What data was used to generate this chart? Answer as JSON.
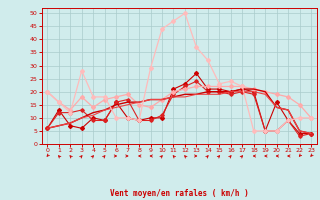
{
  "x": [
    0,
    1,
    2,
    3,
    4,
    5,
    6,
    7,
    8,
    9,
    10,
    11,
    12,
    13,
    14,
    15,
    16,
    17,
    18,
    19,
    20,
    21,
    22,
    23
  ],
  "lines": [
    {
      "y": [
        6,
        13,
        7,
        6,
        10,
        9,
        16,
        10,
        9,
        10,
        10,
        21,
        23,
        27,
        21,
        21,
        20,
        21,
        20,
        5,
        16,
        9,
        4,
        4
      ],
      "color": "#cc0000",
      "lw": 0.8,
      "marker": "D",
      "ms": 2.0
    },
    {
      "y": [
        6,
        12,
        12,
        13,
        9,
        9,
        16,
        17,
        9,
        9,
        11,
        19,
        22,
        24,
        20,
        20,
        19,
        20,
        19,
        5,
        5,
        9,
        3,
        4
      ],
      "color": "#dd2222",
      "lw": 0.8,
      "marker": "D",
      "ms": 1.8
    },
    {
      "y": [
        20,
        16,
        13,
        18,
        14,
        17,
        18,
        19,
        15,
        14,
        17,
        20,
        21,
        22,
        22,
        22,
        22,
        22,
        21,
        20,
        19,
        18,
        15,
        10
      ],
      "color": "#ffaaaa",
      "lw": 0.9,
      "marker": "D",
      "ms": 2.0
    },
    {
      "y": [
        6,
        7,
        8,
        10,
        12,
        13,
        15,
        16,
        16,
        17,
        17,
        18,
        19,
        19,
        20,
        20,
        20,
        21,
        21,
        20,
        14,
        13,
        5,
        4
      ],
      "color": "#cc0000",
      "lw": 1.0,
      "marker": null,
      "ms": 0
    },
    {
      "y": [
        6,
        7,
        8,
        10,
        11,
        13,
        14,
        15,
        16,
        17,
        17,
        18,
        18,
        19,
        19,
        19,
        20,
        20,
        20,
        19,
        14,
        13,
        5,
        4
      ],
      "color": "#ee4444",
      "lw": 0.8,
      "marker": null,
      "ms": 0
    },
    {
      "y": [
        20,
        16,
        12,
        28,
        18,
        18,
        10,
        10,
        9,
        29,
        44,
        47,
        50,
        37,
        32,
        23,
        24,
        22,
        5,
        5,
        5,
        9,
        10,
        10
      ],
      "color": "#ffbbbb",
      "lw": 0.9,
      "marker": "D",
      "ms": 2.0
    }
  ],
  "xlabel": "Vent moyen/en rafales ( km/h )",
  "ylim": [
    0,
    52
  ],
  "xlim": [
    -0.5,
    23.5
  ],
  "yticks": [
    0,
    5,
    10,
    15,
    20,
    25,
    30,
    35,
    40,
    45,
    50
  ],
  "xticks": [
    0,
    1,
    2,
    3,
    4,
    5,
    6,
    7,
    8,
    9,
    10,
    11,
    12,
    13,
    14,
    15,
    16,
    17,
    18,
    19,
    20,
    21,
    22,
    23
  ],
  "bg_color": "#d0ecec",
  "grid_color": "#aacccc",
  "axis_color": "#cc0000",
  "tick_color": "#cc0000",
  "label_color": "#cc0000"
}
